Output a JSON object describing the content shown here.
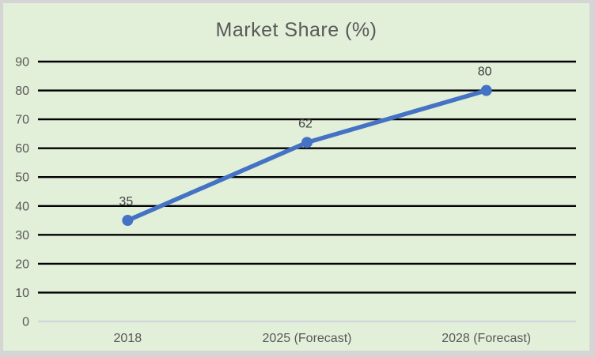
{
  "chart_data": {
    "type": "line",
    "title": "Market Share (%)",
    "categories": [
      "2018",
      "2025 (Forecast)",
      "2028 (Forecast)"
    ],
    "values": [
      35,
      62,
      80
    ],
    "data_labels": [
      "35",
      "62",
      "80"
    ],
    "xlabel": "",
    "ylabel": "",
    "ylim": [
      0,
      90
    ],
    "yticks": [
      0,
      10,
      20,
      30,
      40,
      50,
      60,
      70,
      80,
      90
    ],
    "grid": "horizontal",
    "legend": "none",
    "markers": true
  },
  "colors": {
    "line": "#4472C4",
    "marker": "#4472C4",
    "gridline": "#000000",
    "zero_axis_line": "#D3D7DB",
    "chart_background": "#E2EFD9",
    "frame_background": "#D5D5D5",
    "title_text": "#595959",
    "axis_text": "#595959",
    "data_label_text": "#404040"
  }
}
